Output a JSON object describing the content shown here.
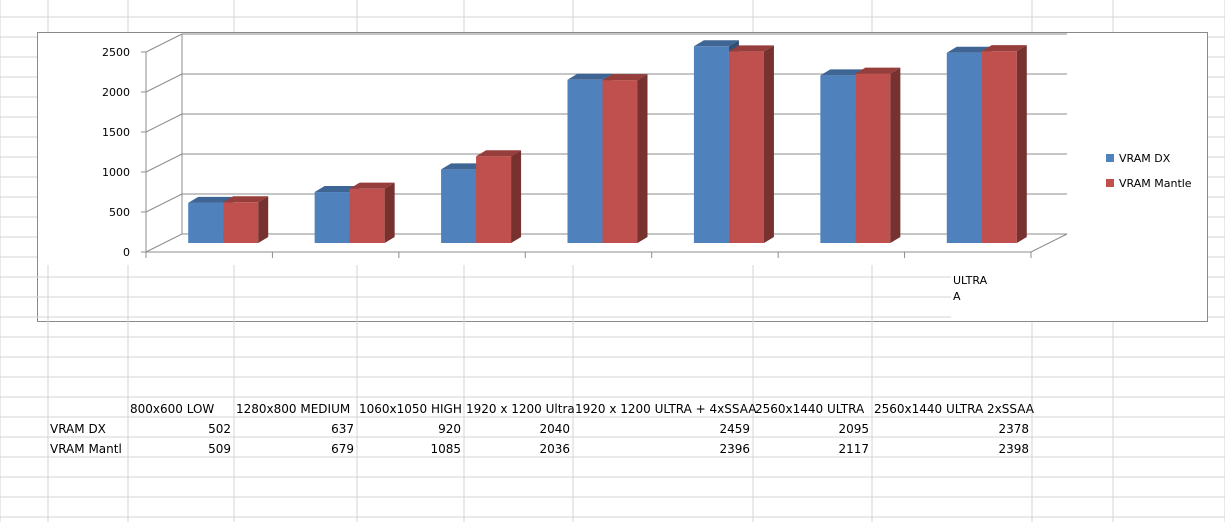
{
  "chart_data": {
    "type": "bar",
    "categories": [
      "800x600 LOW",
      "1280x800 MEDIUM",
      "1060x1050 HIGH",
      "1920 x 1200 Ultra",
      "1920 x 1200 ULTRA + 4xSSAA",
      "2560x1440 ULTRA",
      "2560x1440 ULTRA 2xSSAA"
    ],
    "series": [
      {
        "name": "VRAM DX",
        "values": [
          502,
          637,
          920,
          2040,
          2459,
          2095,
          2378
        ],
        "color": "#4F81BD"
      },
      {
        "name": "VRAM Mantle",
        "values": [
          509,
          679,
          1085,
          2036,
          2396,
          2117,
          2398
        ],
        "color": "#C0504D"
      }
    ],
    "yticks": [
      "0",
      "500",
      "1000",
      "1500",
      "2000",
      "2500"
    ],
    "ylim": [
      0,
      2500
    ],
    "grid": true,
    "legend_position": "right",
    "bar_style": "3d-clustered-column",
    "overflow_label": [
      "ULTRA",
      "A"
    ]
  },
  "sheet": {
    "row_labels": [
      "VRAM DX",
      "VRAM Mantl"
    ]
  }
}
